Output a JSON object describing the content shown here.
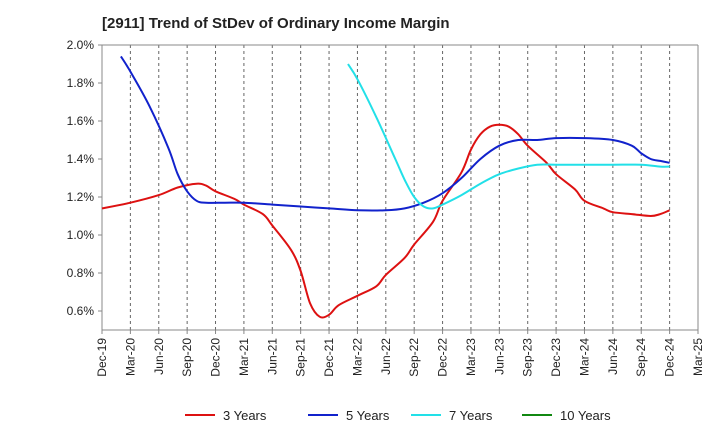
{
  "chart_data": {
    "type": "line",
    "title": "[2911]  Trend of StDev of Ordinary Income Margin",
    "xlabel": "",
    "ylabel": "",
    "x_ticks": [
      "Dec-19",
      "Mar-20",
      "Jun-20",
      "Sep-20",
      "Dec-20",
      "Mar-21",
      "Jun-21",
      "Sep-21",
      "Dec-21",
      "Mar-22",
      "Jun-22",
      "Sep-22",
      "Dec-22",
      "Mar-23",
      "Jun-23",
      "Sep-23",
      "Dec-23",
      "Mar-24",
      "Jun-24",
      "Sep-24",
      "Dec-24",
      "Mar-25"
    ],
    "y_ticks": [
      "0.6%",
      "0.8%",
      "1.0%",
      "1.2%",
      "1.4%",
      "1.6%",
      "1.8%",
      "2.0%"
    ],
    "ylim": [
      0.5,
      2.0
    ],
    "y_unit": "%",
    "grid": "vertical-dashed",
    "legend_position": "bottom",
    "series": [
      {
        "name": "3 Years",
        "color": "#dd1111",
        "points": [
          [
            "Dec-19",
            1.14
          ],
          [
            "Mar-20",
            1.17
          ],
          [
            "Jun-20",
            1.21
          ],
          [
            "Aug-20",
            1.25
          ],
          [
            "Oct-20",
            1.27
          ],
          [
            "Nov-20",
            1.26
          ],
          [
            "Dec-20",
            1.23
          ],
          [
            "Feb-21",
            1.19
          ],
          [
            "Mar-21",
            1.16
          ],
          [
            "May-21",
            1.11
          ],
          [
            "Jun-21",
            1.05
          ],
          [
            "Aug-21",
            0.92
          ],
          [
            "Sep-21",
            0.81
          ],
          [
            "Oct-21",
            0.64
          ],
          [
            "Nov-21",
            0.57
          ],
          [
            "Dec-21",
            0.58
          ],
          [
            "Jan-22",
            0.63
          ],
          [
            "Mar-22",
            0.68
          ],
          [
            "May-22",
            0.73
          ],
          [
            "Jun-22",
            0.79
          ],
          [
            "Aug-22",
            0.88
          ],
          [
            "Sep-22",
            0.95
          ],
          [
            "Nov-22",
            1.07
          ],
          [
            "Dec-22",
            1.18
          ],
          [
            "Feb-23",
            1.33
          ],
          [
            "Mar-23",
            1.45
          ],
          [
            "Apr-23",
            1.53
          ],
          [
            "May-23",
            1.57
          ],
          [
            "Jun-23",
            1.58
          ],
          [
            "Jul-23",
            1.57
          ],
          [
            "Aug-23",
            1.53
          ],
          [
            "Sep-23",
            1.47
          ],
          [
            "Nov-23",
            1.38
          ],
          [
            "Dec-23",
            1.32
          ],
          [
            "Feb-24",
            1.24
          ],
          [
            "Mar-24",
            1.18
          ],
          [
            "May-24",
            1.14
          ],
          [
            "Jun-24",
            1.12
          ],
          [
            "Aug-24",
            1.11
          ],
          [
            "Oct-24",
            1.1
          ],
          [
            "Nov-24",
            1.11
          ],
          [
            "Dec-24",
            1.13
          ]
        ]
      },
      {
        "name": "5 Years",
        "color": "#1122cc",
        "points": [
          [
            "Feb-20",
            1.94
          ],
          [
            "Mar-20",
            1.86
          ],
          [
            "May-20",
            1.68
          ],
          [
            "Jul-20",
            1.46
          ],
          [
            "Aug-20",
            1.32
          ],
          [
            "Sep-20",
            1.23
          ],
          [
            "Oct-20",
            1.18
          ],
          [
            "Nov-20",
            1.17
          ],
          [
            "Jan-21",
            1.17
          ],
          [
            "Mar-21",
            1.17
          ],
          [
            "Jun-21",
            1.16
          ],
          [
            "Sep-21",
            1.15
          ],
          [
            "Dec-21",
            1.14
          ],
          [
            "Mar-22",
            1.13
          ],
          [
            "Jun-22",
            1.13
          ],
          [
            "Aug-22",
            1.14
          ],
          [
            "Oct-22",
            1.17
          ],
          [
            "Dec-22",
            1.22
          ],
          [
            "Feb-23",
            1.3
          ],
          [
            "Apr-23",
            1.4
          ],
          [
            "Jun-23",
            1.47
          ],
          [
            "Aug-23",
            1.5
          ],
          [
            "Oct-23",
            1.5
          ],
          [
            "Dec-23",
            1.51
          ],
          [
            "Mar-24",
            1.51
          ],
          [
            "Jun-24",
            1.5
          ],
          [
            "Aug-24",
            1.47
          ],
          [
            "Sep-24",
            1.43
          ],
          [
            "Oct-24",
            1.4
          ],
          [
            "Nov-24",
            1.39
          ],
          [
            "Dec-24",
            1.38
          ]
        ]
      },
      {
        "name": "7 Years",
        "color": "#22e0e8",
        "points": [
          [
            "Feb-22",
            1.9
          ],
          [
            "Mar-22",
            1.82
          ],
          [
            "May-22",
            1.62
          ],
          [
            "Jul-22",
            1.4
          ],
          [
            "Aug-22",
            1.29
          ],
          [
            "Sep-22",
            1.2
          ],
          [
            "Oct-22",
            1.15
          ],
          [
            "Nov-22",
            1.14
          ],
          [
            "Dec-22",
            1.16
          ],
          [
            "Feb-23",
            1.21
          ],
          [
            "Apr-23",
            1.27
          ],
          [
            "Jun-23",
            1.32
          ],
          [
            "Aug-23",
            1.35
          ],
          [
            "Oct-23",
            1.37
          ],
          [
            "Dec-23",
            1.37
          ],
          [
            "Mar-24",
            1.37
          ],
          [
            "Jun-24",
            1.37
          ],
          [
            "Sep-24",
            1.37
          ],
          [
            "Nov-24",
            1.36
          ],
          [
            "Dec-24",
            1.36
          ]
        ]
      },
      {
        "name": "10 Years",
        "color": "#118811",
        "points": []
      }
    ]
  }
}
